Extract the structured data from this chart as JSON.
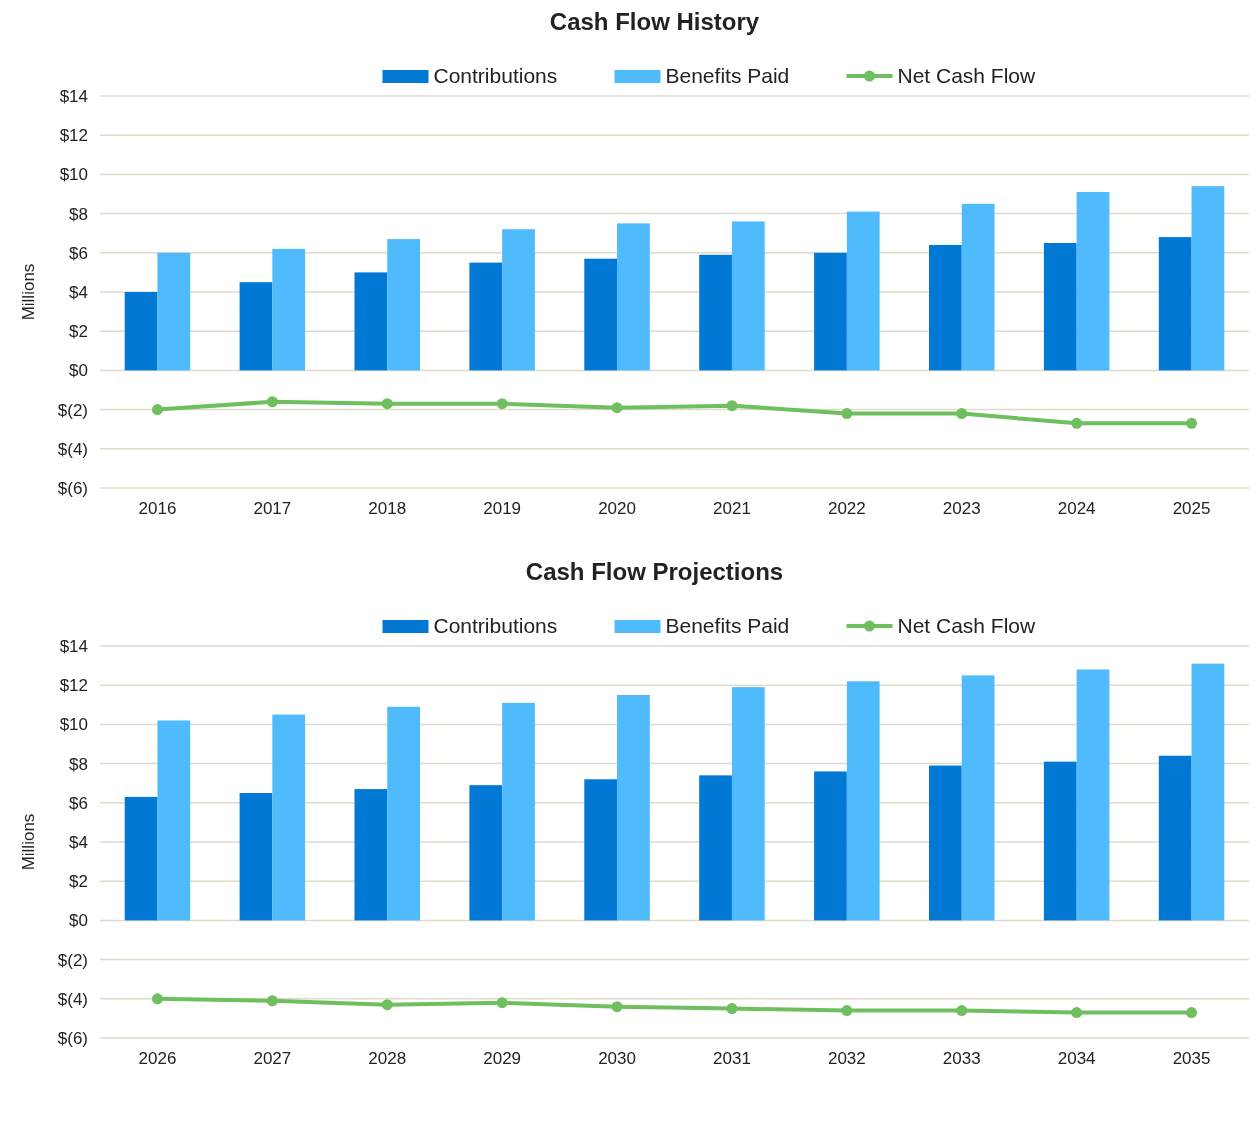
{
  "chart_data": [
    {
      "type": "bar",
      "title": "Cash Flow History",
      "ylabel": "Millions",
      "categories": [
        "2016",
        "2017",
        "2018",
        "2019",
        "2020",
        "2021",
        "2022",
        "2023",
        "2024",
        "2025"
      ],
      "series": [
        {
          "name": "Contributions",
          "color": "#0078d4",
          "values": [
            4.0,
            4.5,
            5.0,
            5.5,
            5.7,
            5.9,
            6.0,
            6.4,
            6.5,
            6.8
          ]
        },
        {
          "name": "Benefits Paid",
          "color": "#4fbafc",
          "values": [
            6.0,
            6.2,
            6.7,
            7.2,
            7.5,
            7.6,
            8.1,
            8.5,
            9.1,
            9.4
          ]
        },
        {
          "name": "Net Cash Flow",
          "type": "line",
          "color": "#70bf5f",
          "values": [
            -2.0,
            -1.6,
            -1.7,
            -1.7,
            -1.9,
            -1.8,
            -2.2,
            -2.2,
            -2.7,
            -2.7
          ]
        }
      ],
      "ylim": [
        -6,
        14
      ],
      "yticks": [
        {
          "value": -6,
          "label": "$(6)"
        },
        {
          "value": -4,
          "label": "$(4)"
        },
        {
          "value": -2,
          "label": "$(2)"
        },
        {
          "value": 0,
          "label": "$0"
        },
        {
          "value": 2,
          "label": "$2"
        },
        {
          "value": 4,
          "label": "$4"
        },
        {
          "value": 6,
          "label": "$6"
        },
        {
          "value": 8,
          "label": "$8"
        },
        {
          "value": 10,
          "label": "$10"
        },
        {
          "value": 12,
          "label": "$12"
        },
        {
          "value": 14,
          "label": "$14"
        }
      ],
      "grid": "y",
      "legend": "top",
      "marker": "circle"
    },
    {
      "type": "bar",
      "title": "Cash Flow Projections",
      "ylabel": "Millions",
      "categories": [
        "2026",
        "2027",
        "2028",
        "2029",
        "2030",
        "2031",
        "2032",
        "2033",
        "2034",
        "2035"
      ],
      "series": [
        {
          "name": "Contributions",
          "color": "#0078d4",
          "values": [
            6.3,
            6.5,
            6.7,
            6.9,
            7.2,
            7.4,
            7.6,
            7.9,
            8.1,
            8.4
          ]
        },
        {
          "name": "Benefits Paid",
          "color": "#4fbafc",
          "values": [
            10.2,
            10.5,
            10.9,
            11.1,
            11.5,
            11.9,
            12.2,
            12.5,
            12.8,
            13.1
          ]
        },
        {
          "name": "Net Cash Flow",
          "type": "line",
          "color": "#70bf5f",
          "values": [
            -4.0,
            -4.1,
            -4.3,
            -4.2,
            -4.4,
            -4.5,
            -4.6,
            -4.6,
            -4.7,
            -4.7
          ]
        }
      ],
      "ylim": [
        -6,
        14
      ],
      "yticks": [
        {
          "value": -6,
          "label": "$(6)"
        },
        {
          "value": -4,
          "label": "$(4)"
        },
        {
          "value": -2,
          "label": "$(2)"
        },
        {
          "value": 0,
          "label": "$0"
        },
        {
          "value": 2,
          "label": "$2"
        },
        {
          "value": 4,
          "label": "$4"
        },
        {
          "value": 6,
          "label": "$6"
        },
        {
          "value": 8,
          "label": "$8"
        },
        {
          "value": 10,
          "label": "$10"
        },
        {
          "value": 12,
          "label": "$12"
        },
        {
          "value": 14,
          "label": "$14"
        }
      ],
      "grid": "y",
      "legend": "top",
      "marker": "circle"
    }
  ]
}
